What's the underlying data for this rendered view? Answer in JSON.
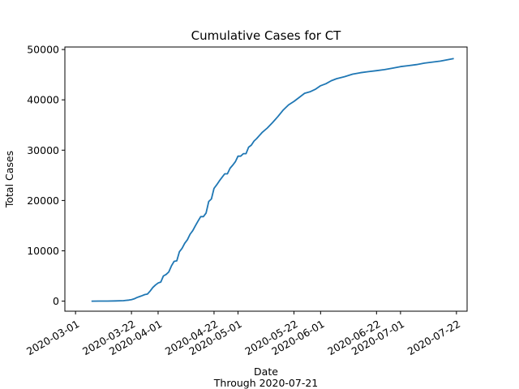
{
  "chart_data": {
    "type": "line",
    "title": "Cumulative Cases for CT",
    "xlabel": "Date",
    "xlabel_sub": "Through 2020-07-21",
    "ylabel": "Total Cases",
    "xlim": [
      "2020-02-26",
      "2020-07-26"
    ],
    "ylim": [
      -2000,
      50500
    ],
    "grid": false,
    "legend": "none",
    "line_color": "#1f77b4",
    "x_ticks": [
      "2020-03-01",
      "2020-03-22",
      "2020-04-01",
      "2020-04-22",
      "2020-05-01",
      "2020-05-22",
      "2020-06-01",
      "2020-06-22",
      "2020-07-01",
      "2020-07-22"
    ],
    "y_ticks": [
      0,
      10000,
      20000,
      30000,
      40000,
      50000
    ],
    "series": [
      {
        "x": [
          "2020-03-07",
          "2020-03-10",
          "2020-03-13",
          "2020-03-16",
          "2020-03-19",
          "2020-03-20",
          "2020-03-21",
          "2020-03-22",
          "2020-03-23",
          "2020-03-24",
          "2020-03-25",
          "2020-03-26",
          "2020-03-27",
          "2020-03-28",
          "2020-03-29",
          "2020-03-30",
          "2020-03-31",
          "2020-04-01",
          "2020-04-02",
          "2020-04-03",
          "2020-04-04",
          "2020-04-05",
          "2020-04-06",
          "2020-04-07",
          "2020-04-08",
          "2020-04-09",
          "2020-04-10",
          "2020-04-11",
          "2020-04-12",
          "2020-04-13",
          "2020-04-14",
          "2020-04-15",
          "2020-04-16",
          "2020-04-17",
          "2020-04-18",
          "2020-04-19",
          "2020-04-20",
          "2020-04-21",
          "2020-04-22",
          "2020-04-23",
          "2020-04-24",
          "2020-04-25",
          "2020-04-26",
          "2020-04-27",
          "2020-04-28",
          "2020-04-29",
          "2020-04-30",
          "2020-05-01",
          "2020-05-02",
          "2020-05-03",
          "2020-05-04",
          "2020-05-05",
          "2020-05-06",
          "2020-05-07",
          "2020-05-08",
          "2020-05-09",
          "2020-05-10",
          "2020-05-12",
          "2020-05-14",
          "2020-05-16",
          "2020-05-18",
          "2020-05-20",
          "2020-05-22",
          "2020-05-24",
          "2020-05-26",
          "2020-05-28",
          "2020-05-30",
          "2020-06-01",
          "2020-06-03",
          "2020-06-05",
          "2020-06-07",
          "2020-06-10",
          "2020-06-13",
          "2020-06-16",
          "2020-06-19",
          "2020-06-22",
          "2020-06-25",
          "2020-06-28",
          "2020-07-01",
          "2020-07-04",
          "2020-07-07",
          "2020-07-10",
          "2020-07-13",
          "2020-07-16",
          "2020-07-19",
          "2020-07-21"
        ],
        "values": [
          0,
          10,
          20,
          40,
          100,
          150,
          200,
          300,
          450,
          700,
          900,
          1100,
          1300,
          1400,
          2000,
          2700,
          3200,
          3600,
          3800,
          5000,
          5300,
          5800,
          7000,
          7900,
          8000,
          9800,
          10500,
          11500,
          12200,
          13300,
          14000,
          15000,
          15900,
          16800,
          16800,
          17500,
          19800,
          20300,
          22400,
          23100,
          23900,
          24600,
          25300,
          25300,
          26400,
          27000,
          27700,
          28800,
          28800,
          29300,
          29300,
          30600,
          31000,
          31800,
          32300,
          32900,
          33500,
          34400,
          35500,
          36700,
          38000,
          39000,
          39700,
          40500,
          41300,
          41600,
          42100,
          42800,
          43200,
          43800,
          44200,
          44600,
          45100,
          45400,
          45600,
          45800,
          46000,
          46300,
          46600,
          46800,
          47000,
          47300,
          47500,
          47700,
          48000,
          48200
        ]
      }
    ]
  }
}
